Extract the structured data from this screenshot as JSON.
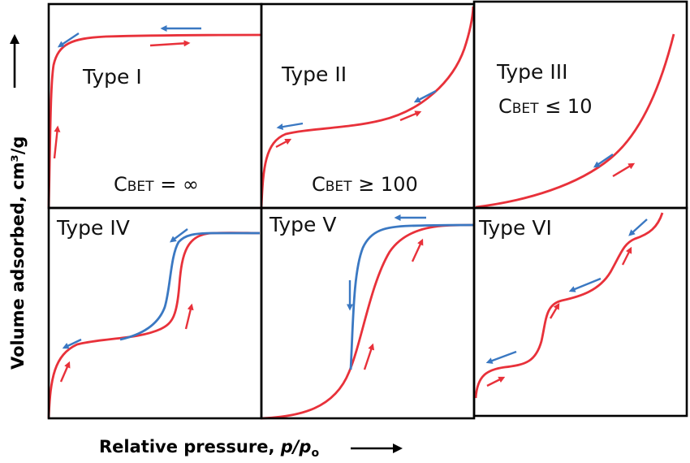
{
  "diagram": {
    "y_axis_label": "Volume adsorbed, cm³/g",
    "x_axis_label_text": "Relative pressure, ",
    "x_axis_label_var": "p/p",
    "x_axis_label_sub": "o",
    "colors": {
      "adsorption": "#e8313a",
      "desorption": "#3a78c2",
      "frame": "#000000"
    },
    "panels": [
      {
        "title": "Type I",
        "note_prefix": "C",
        "note_sub": "BET",
        "note_suffix": " = ∞"
      },
      {
        "title": "Type II",
        "note_prefix": "C",
        "note_sub": "BET",
        "note_suffix": " ≥ 100"
      },
      {
        "title": "Type III",
        "note_prefix": "C",
        "note_sub": "BET",
        "note_suffix": " ≤ 10"
      },
      {
        "title": "Type IV"
      },
      {
        "title": "Type V"
      },
      {
        "title": "Type VI"
      }
    ]
  }
}
